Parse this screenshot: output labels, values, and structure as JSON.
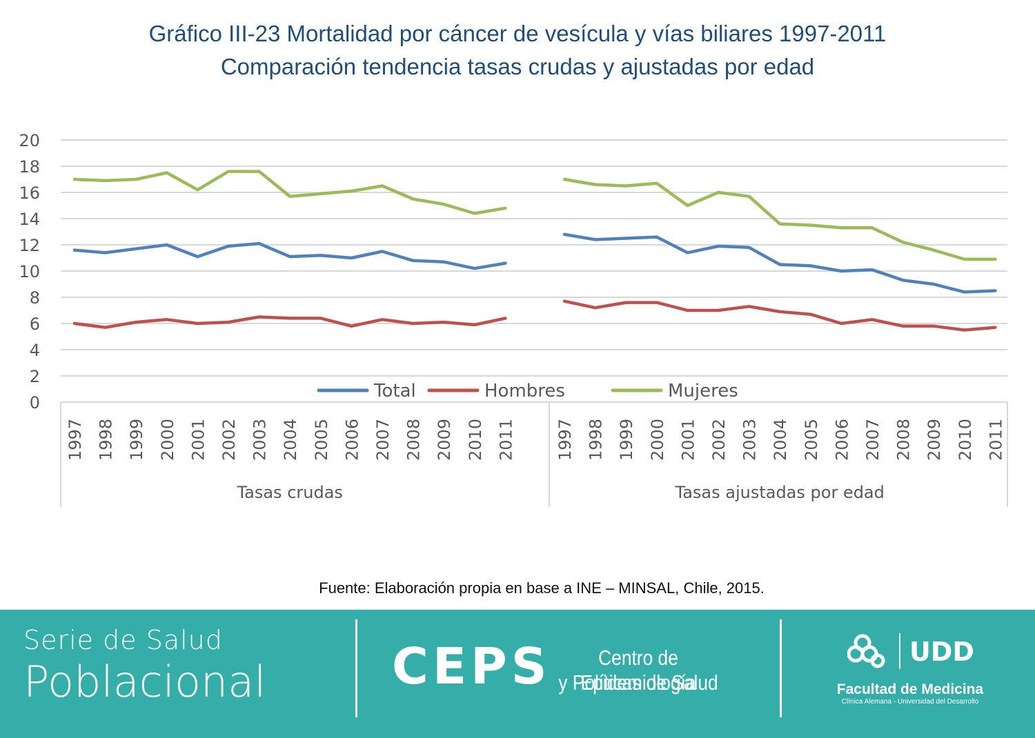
{
  "title_line1": "Gráfico III-23 Mortalidad por cáncer de vesícula y vías biliares 1997-2011",
  "title_line2": "Comparación tendencia tasas crudas y ajustadas por edad",
  "source": "Fuente: Elaboración propia en base a INE – MINSAL, Chile, 2015.",
  "footer": {
    "serie_line1": "Serie de Salud",
    "serie_line2": "Poblacional",
    "ceps": "CEPS",
    "ceps_line1": "Centro de Epidemiología",
    "ceps_line2": "y Políticas de Salud",
    "udd_logo_text": "UDD",
    "faculty": "Facultad de Medicina",
    "faculty_sub": "Clínica Alemana - Universidad del Desarrollo",
    "color": "#35aeaa"
  },
  "chart_data": {
    "type": "line",
    "ylim": [
      0,
      20
    ],
    "yticks": [
      0,
      2,
      4,
      6,
      8,
      10,
      12,
      14,
      16,
      18,
      20
    ],
    "grid": true,
    "legend_position": "bottom",
    "groups": [
      "Tasas crudas",
      "Tasas ajustadas por edad"
    ],
    "categories": [
      "1997",
      "1998",
      "1999",
      "2000",
      "2001",
      "2002",
      "2003",
      "2004",
      "2005",
      "2006",
      "2007",
      "2008",
      "2009",
      "2010",
      "2011"
    ],
    "series": [
      {
        "name": "Total",
        "color": "#4f81bd",
        "values": [
          [
            11.6,
            11.4,
            11.7,
            12.0,
            11.1,
            11.9,
            12.1,
            11.1,
            11.2,
            11.0,
            11.5,
            10.8,
            10.7,
            10.2,
            10.6
          ],
          [
            12.8,
            12.4,
            12.5,
            12.6,
            11.4,
            11.9,
            11.8,
            10.5,
            10.4,
            10.0,
            10.1,
            9.3,
            9.0,
            8.4,
            8.5
          ]
        ]
      },
      {
        "name": "Hombres",
        "color": "#c0504d",
        "values": [
          [
            6.0,
            5.7,
            6.1,
            6.3,
            6.0,
            6.1,
            6.5,
            6.4,
            6.4,
            5.8,
            6.3,
            6.0,
            6.1,
            5.9,
            6.4
          ],
          [
            7.7,
            7.2,
            7.6,
            7.6,
            7.0,
            7.0,
            7.3,
            6.9,
            6.7,
            6.0,
            6.3,
            5.8,
            5.8,
            5.5,
            5.7
          ]
        ]
      },
      {
        "name": "Mujeres",
        "color": "#9bbb59",
        "values": [
          [
            17.0,
            16.9,
            17.0,
            17.5,
            16.2,
            17.6,
            17.6,
            15.7,
            15.9,
            16.1,
            16.5,
            15.5,
            15.1,
            14.4,
            14.8
          ],
          [
            17.0,
            16.6,
            16.5,
            16.7,
            15.0,
            16.0,
            15.7,
            13.6,
            13.5,
            13.3,
            13.3,
            12.2,
            11.6,
            10.9,
            10.9
          ]
        ]
      }
    ]
  }
}
